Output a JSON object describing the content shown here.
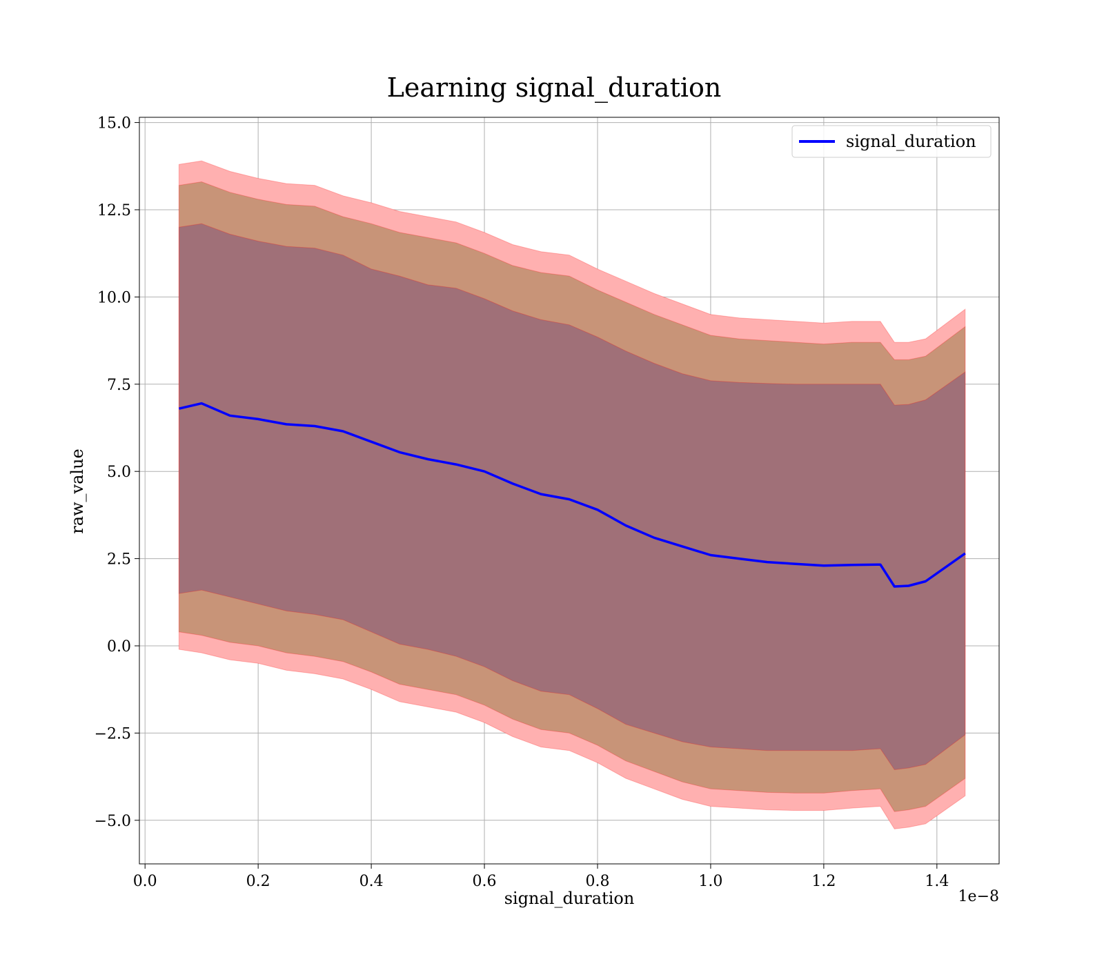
{
  "chart_data": {
    "type": "area",
    "title": "Learning signal_duration",
    "xlabel": "signal_duration",
    "ylabel": "raw_value",
    "x_offset_label": "1e−8",
    "xlim": [
      -0.01,
      1.51
    ],
    "ylim": [
      -6.25,
      15.15
    ],
    "x_ticks": [
      0.0,
      0.2,
      0.4,
      0.6,
      0.8,
      1.0,
      1.2,
      1.4
    ],
    "x_tick_labels": [
      "0.0",
      "0.2",
      "0.4",
      "0.6",
      "0.8",
      "1.0",
      "1.2",
      "1.4"
    ],
    "y_ticks": [
      -5.0,
      -2.5,
      0.0,
      2.5,
      5.0,
      7.5,
      10.0,
      12.5,
      15.0
    ],
    "y_tick_labels": [
      "−5.0",
      "−2.5",
      "0.0",
      "2.5",
      "5.0",
      "7.5",
      "10.0",
      "12.5",
      "15.0"
    ],
    "grid": true,
    "legend_position": "top-right",
    "colors": {
      "line": "#0000ff",
      "band": "#ff0000",
      "band_outer": "#ffb0b0",
      "band_middle": "#c89478",
      "band_inner": "#a07078"
    },
    "x": [
      0.06,
      0.1,
      0.15,
      0.2,
      0.25,
      0.3,
      0.35,
      0.4,
      0.45,
      0.5,
      0.55,
      0.6,
      0.65,
      0.7,
      0.75,
      0.8,
      0.85,
      0.9,
      0.95,
      1.0,
      1.05,
      1.1,
      1.15,
      1.2,
      1.25,
      1.3,
      1.325,
      1.35,
      1.38,
      1.45
    ],
    "series": [
      {
        "name": "signal_duration",
        "values": [
          6.8,
          6.95,
          6.6,
          6.5,
          6.35,
          6.3,
          6.15,
          5.85,
          5.55,
          5.35,
          5.2,
          5.0,
          4.65,
          4.35,
          4.2,
          3.9,
          3.45,
          3.1,
          2.85,
          2.6,
          2.5,
          2.4,
          2.35,
          2.3,
          2.32,
          2.33,
          1.7,
          1.72,
          1.85,
          2.65
        ]
      }
    ],
    "bands": [
      {
        "lower": [
          -0.1,
          -0.2,
          -0.4,
          -0.5,
          -0.7,
          -0.8,
          -0.95,
          -1.25,
          -1.6,
          -1.75,
          -1.9,
          -2.2,
          -2.6,
          -2.9,
          -3.0,
          -3.35,
          -3.8,
          -4.1,
          -4.4,
          -4.6,
          -4.65,
          -4.7,
          -4.72,
          -4.72,
          -4.65,
          -4.6,
          -5.25,
          -5.2,
          -5.1,
          -4.3
        ],
        "upper": [
          13.8,
          13.9,
          13.6,
          13.4,
          13.25,
          13.2,
          12.9,
          12.7,
          12.45,
          12.3,
          12.15,
          11.85,
          11.5,
          11.3,
          11.2,
          10.8,
          10.45,
          10.1,
          9.8,
          9.5,
          9.4,
          9.35,
          9.3,
          9.25,
          9.3,
          9.3,
          8.7,
          8.7,
          8.8,
          9.65
        ]
      },
      {
        "lower": [
          0.4,
          0.3,
          0.1,
          0.0,
          -0.2,
          -0.3,
          -0.45,
          -0.75,
          -1.1,
          -1.25,
          -1.4,
          -1.7,
          -2.1,
          -2.4,
          -2.5,
          -2.85,
          -3.3,
          -3.6,
          -3.9,
          -4.1,
          -4.15,
          -4.2,
          -4.22,
          -4.22,
          -4.15,
          -4.1,
          -4.75,
          -4.7,
          -4.6,
          -3.8
        ],
        "upper": [
          13.2,
          13.3,
          13.0,
          12.8,
          12.65,
          12.6,
          12.3,
          12.1,
          11.85,
          11.7,
          11.55,
          11.25,
          10.9,
          10.7,
          10.6,
          10.2,
          9.85,
          9.5,
          9.2,
          8.9,
          8.8,
          8.75,
          8.7,
          8.65,
          8.7,
          8.7,
          8.2,
          8.2,
          8.3,
          9.15
        ]
      },
      {
        "lower": [
          1.5,
          1.6,
          1.4,
          1.2,
          1.0,
          0.9,
          0.75,
          0.4,
          0.05,
          -0.1,
          -0.3,
          -0.6,
          -1.0,
          -1.3,
          -1.4,
          -1.8,
          -2.25,
          -2.5,
          -2.75,
          -2.9,
          -2.95,
          -3.0,
          -3.0,
          -3.0,
          -3.0,
          -2.95,
          -3.55,
          -3.5,
          -3.4,
          -2.55
        ],
        "upper": [
          12.0,
          12.1,
          11.8,
          11.6,
          11.45,
          11.4,
          11.2,
          10.8,
          10.6,
          10.35,
          10.25,
          9.95,
          9.6,
          9.35,
          9.2,
          8.85,
          8.45,
          8.1,
          7.8,
          7.6,
          7.55,
          7.52,
          7.5,
          7.5,
          7.5,
          7.5,
          6.9,
          6.92,
          7.05,
          7.85
        ]
      }
    ]
  }
}
